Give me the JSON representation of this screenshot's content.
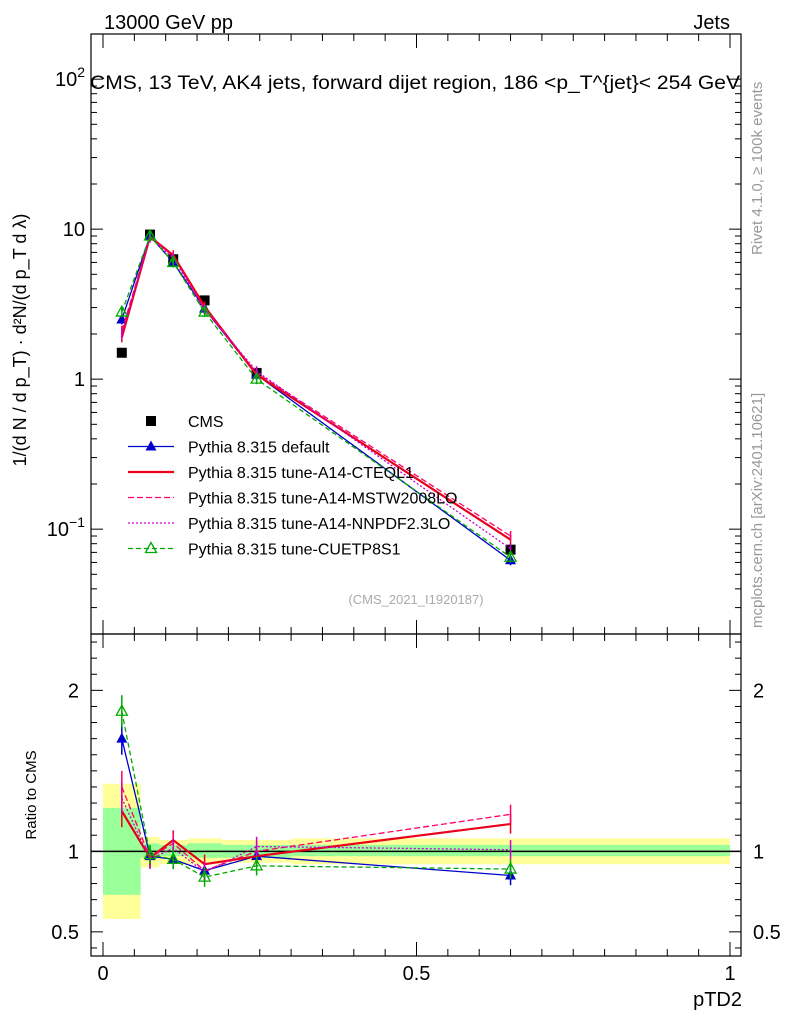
{
  "header": {
    "left": "13000 GeV pp",
    "right": "Jets"
  },
  "side_labels": {
    "rivet": "Rivet 4.1.0, ≥ 100k events",
    "mcplots": "mcplots.cern.ch [arXiv:2401.10621]"
  },
  "chart_data": {
    "type": "line",
    "title": "CMS, 13 TeV, AK4 jets, forward dijet region, 186 <p_T^{jet}< 254 GeV",
    "ylabel": "1/(d N / d p_T) · d²N/(d p_T d λ)",
    "xlabel": "pTD2",
    "watermark": "(CMS_2021_I1920187)",
    "xlim": [
      0,
      1
    ],
    "ylim": [
      0.02,
      200
    ],
    "yscale": "log",
    "x_ticks": [
      "0",
      "0.5",
      "1"
    ],
    "x_tick_values": [
      0,
      0.5,
      1
    ],
    "y_ticks": [
      "10^-1",
      "1",
      "10",
      "10^2"
    ],
    "y_tick_values": [
      0.1,
      1,
      10,
      100
    ],
    "x": [
      0.03,
      0.075,
      0.112,
      0.162,
      0.245,
      0.65
    ],
    "x_edges": [
      0,
      0.06,
      0.09,
      0.135,
      0.19,
      0.3,
      1.0
    ],
    "series": [
      {
        "name": "CMS",
        "color": "#000000",
        "marker": "square",
        "values": [
          1.5,
          9.2,
          6.3,
          3.35,
          1.1,
          0.073
        ]
      },
      {
        "name": "Pythia 8.315 default",
        "color": "#0000cc",
        "marker": "triangle-filled",
        "dash": "",
        "values": [
          2.5,
          9.0,
          6.0,
          2.95,
          1.07,
          0.062
        ]
      },
      {
        "name": "Pythia 8.315 tune-A14-CTEQL1",
        "color": "#e8001c",
        "marker": "none",
        "dash": "",
        "values": [
          1.9,
          8.9,
          6.7,
          3.05,
          1.07,
          0.085
        ]
      },
      {
        "name": "Pythia 8.315 tune-A14-MSTW2008LO",
        "color": "#ff0066",
        "marker": "none",
        "dash": "6,3",
        "values": [
          2.1,
          8.9,
          6.6,
          2.95,
          1.1,
          0.09
        ]
      },
      {
        "name": "Pythia 8.315 tune-A14-NNPDF2.3LO",
        "color": "#cc00cc",
        "marker": "none",
        "dash": "2,2",
        "values": [
          2.0,
          8.8,
          6.4,
          2.9,
          1.13,
          0.074
        ]
      },
      {
        "name": "Pythia 8.315 tune-CUETP8S1",
        "color": "#00aa00",
        "marker": "triangle-open",
        "dash": "5,3",
        "values": [
          2.8,
          9.0,
          6.0,
          2.8,
          1.0,
          0.065
        ]
      }
    ],
    "ratio": {
      "ylabel": "Ratio to CMS",
      "ylim": [
        0.35,
        2.35
      ],
      "y_ticks": [
        "0.5",
        "1",
        "2"
      ],
      "y_tick_values": [
        0.5,
        1.0,
        2.0
      ],
      "band_stat": [
        [
          0.73,
          1.27
        ],
        [
          0.96,
          1.05
        ],
        [
          0.97,
          1.04
        ],
        [
          0.96,
          1.05
        ],
        [
          0.96,
          1.04
        ],
        [
          0.97,
          1.04
        ]
      ],
      "band_total": [
        [
          0.58,
          1.42
        ],
        [
          0.9,
          1.09
        ],
        [
          0.92,
          1.07
        ],
        [
          0.92,
          1.08
        ],
        [
          0.93,
          1.07
        ],
        [
          0.92,
          1.08
        ]
      ],
      "series": [
        {
          "name": "Pythia 8.315 default",
          "values": [
            1.7,
            0.97,
            0.95,
            0.88,
            0.97,
            0.85
          ]
        },
        {
          "name": "Pythia 8.315 tune-A14-CTEQL1",
          "values": [
            1.25,
            0.96,
            1.07,
            0.92,
            0.97,
            1.17
          ]
        },
        {
          "name": "Pythia 8.315 tune-A14-MSTW2008LO",
          "values": [
            1.4,
            0.96,
            1.05,
            0.88,
            1.0,
            1.23
          ]
        },
        {
          "name": "Pythia 8.315 tune-A14-NNPDF2.3LO",
          "values": [
            1.33,
            0.95,
            1.02,
            0.87,
            1.03,
            1.01
          ]
        },
        {
          "name": "Pythia 8.315 tune-CUETP8S1",
          "values": [
            1.87,
            0.98,
            0.95,
            0.84,
            0.91,
            0.89
          ]
        }
      ]
    }
  }
}
